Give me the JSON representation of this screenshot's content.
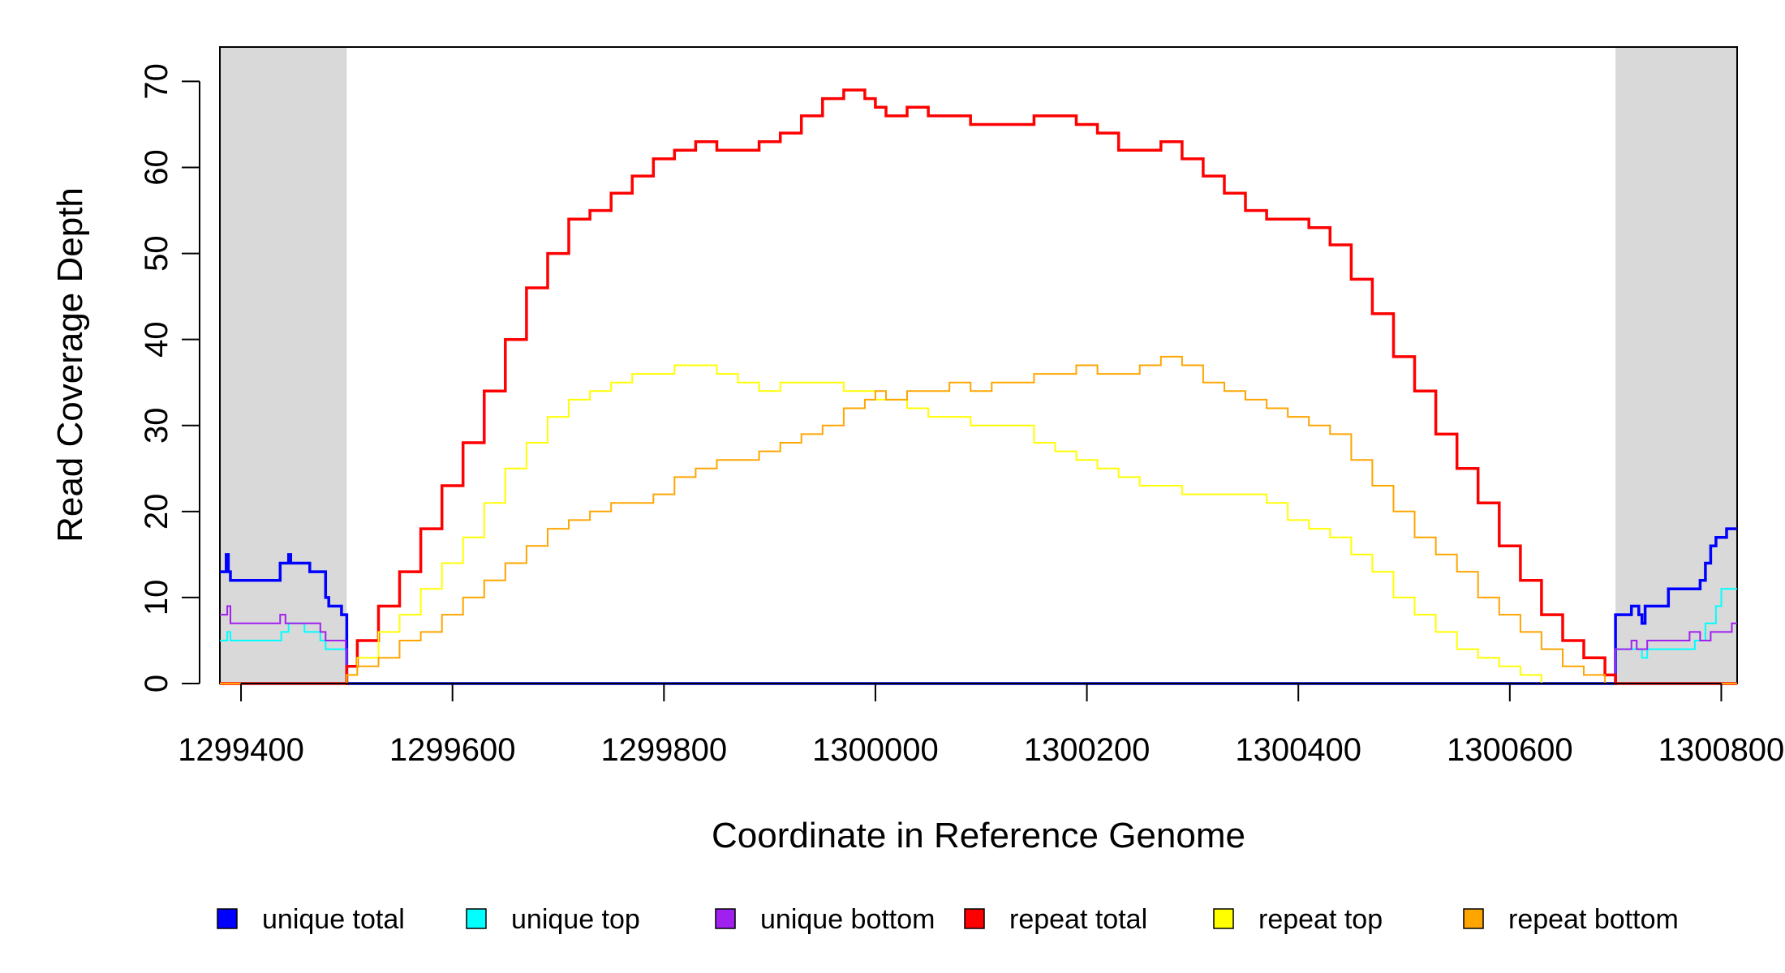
{
  "chart_data": {
    "type": "line",
    "title": "",
    "xlabel": "Coordinate in Reference Genome",
    "ylabel": "Read Coverage Depth",
    "xlim": [
      1299380,
      1300815
    ],
    "ylim": [
      0,
      74
    ],
    "x_ticks": [
      1299400,
      1299600,
      1299800,
      1300000,
      1300200,
      1300400,
      1300600,
      1300800
    ],
    "x_tick_labels": [
      "1299400",
      "1299600",
      "1299800",
      "1300000",
      "1300200",
      "1300400",
      "1300600",
      "1300800"
    ],
    "y_ticks": [
      0,
      10,
      20,
      30,
      40,
      50,
      60,
      70
    ],
    "y_tick_labels": [
      "0",
      "10",
      "20",
      "30",
      "40",
      "50",
      "60",
      "70"
    ],
    "shaded_regions": [
      [
        1299380,
        1299500
      ],
      [
        1300700,
        1300815
      ]
    ],
    "grid": false,
    "legend_position": "bottom",
    "series": [
      {
        "name": "unique total",
        "color": "#0000ff",
        "x": [
          1299380,
          1299386,
          1299388,
          1299390,
          1299410,
          1299415,
          1299425,
          1299437,
          1299445,
          1299447,
          1299453,
          1299465,
          1299480,
          1299483,
          1299490,
          1299495,
          1299499,
          1299500,
          1300700,
          1300705,
          1300715,
          1300722,
          1300725,
          1300728,
          1300732,
          1300750,
          1300760,
          1300780,
          1300785,
          1300790,
          1300795,
          1300800,
          1300805,
          1300815
        ],
        "values": [
          13,
          15,
          13,
          12,
          12,
          12,
          12,
          14,
          15,
          14,
          14,
          13,
          10,
          9,
          9,
          8,
          8,
          0,
          8,
          8,
          9,
          8,
          7,
          9,
          9,
          11,
          11,
          12,
          14,
          16,
          17,
          17,
          18,
          18
        ]
      },
      {
        "name": "unique top",
        "color": "#00ffff",
        "x": [
          1299380,
          1299387,
          1299390,
          1299420,
          1299438,
          1299445,
          1299460,
          1299475,
          1299480,
          1299490,
          1299499,
          1299500,
          1300700,
          1300720,
          1300725,
          1300730,
          1300760,
          1300775,
          1300785,
          1300795,
          1300800,
          1300815
        ],
        "values": [
          5,
          6,
          5,
          5,
          6,
          7,
          6,
          5,
          4,
          4,
          4,
          0,
          4,
          4,
          3,
          4,
          4,
          5,
          7,
          9,
          11,
          11
        ]
      },
      {
        "name": "unique bottom",
        "color": "#a020f0",
        "x": [
          1299380,
          1299387,
          1299390,
          1299420,
          1299437,
          1299442,
          1299460,
          1299475,
          1299480,
          1299485,
          1299499,
          1299500,
          1300700,
          1300715,
          1300720,
          1300725,
          1300730,
          1300740,
          1300750,
          1300770,
          1300780,
          1300790,
          1300805,
          1300810,
          1300815
        ],
        "values": [
          8,
          9,
          7,
          7,
          8,
          7,
          7,
          6,
          5,
          5,
          4,
          0,
          4,
          5,
          4,
          4,
          5,
          5,
          5,
          6,
          5,
          6,
          6,
          7,
          7
        ]
      },
      {
        "name": "repeat total",
        "color": "#ff0000",
        "x": [
          1299380,
          1299495,
          1299500,
          1299510,
          1299530,
          1299550,
          1299570,
          1299590,
          1299610,
          1299630,
          1299650,
          1299670,
          1299690,
          1299710,
          1299730,
          1299750,
          1299770,
          1299790,
          1299810,
          1299830,
          1299850,
          1299870,
          1299890,
          1299910,
          1299930,
          1299950,
          1299970,
          1299990,
          1300000,
          1300010,
          1300030,
          1300050,
          1300070,
          1300090,
          1300110,
          1300130,
          1300150,
          1300170,
          1300190,
          1300210,
          1300230,
          1300250,
          1300270,
          1300290,
          1300310,
          1300330,
          1300350,
          1300370,
          1300390,
          1300410,
          1300430,
          1300450,
          1300470,
          1300490,
          1300510,
          1300530,
          1300550,
          1300570,
          1300590,
          1300610,
          1300630,
          1300650,
          1300670,
          1300690,
          1300700,
          1300815
        ],
        "values": [
          0,
          0,
          2,
          5,
          9,
          13,
          18,
          23,
          28,
          34,
          40,
          46,
          50,
          54,
          55,
          57,
          59,
          61,
          62,
          63,
          62,
          62,
          63,
          64,
          66,
          68,
          69,
          68,
          67,
          66,
          67,
          66,
          66,
          65,
          65,
          65,
          66,
          66,
          65,
          64,
          62,
          62,
          63,
          61,
          59,
          57,
          55,
          54,
          54,
          53,
          51,
          47,
          43,
          38,
          34,
          29,
          25,
          21,
          16,
          12,
          8,
          5,
          3,
          1,
          0,
          0
        ]
      },
      {
        "name": "repeat top",
        "color": "#ffff00",
        "x": [
          1299380,
          1299495,
          1299500,
          1299510,
          1299530,
          1299550,
          1299570,
          1299590,
          1299610,
          1299630,
          1299650,
          1299670,
          1299690,
          1299710,
          1299730,
          1299750,
          1299770,
          1299790,
          1299810,
          1299830,
          1299850,
          1299870,
          1299890,
          1299910,
          1299930,
          1299950,
          1299970,
          1299990,
          1300000,
          1300010,
          1300030,
          1300050,
          1300070,
          1300090,
          1300110,
          1300130,
          1300150,
          1300170,
          1300190,
          1300210,
          1300230,
          1300250,
          1300270,
          1300290,
          1300310,
          1300330,
          1300350,
          1300370,
          1300390,
          1300410,
          1300430,
          1300450,
          1300470,
          1300490,
          1300510,
          1300530,
          1300550,
          1300570,
          1300590,
          1300610,
          1300630,
          1300650,
          1300670,
          1300690,
          1300700,
          1300815
        ],
        "values": [
          0,
          0,
          1,
          3,
          6,
          8,
          11,
          14,
          17,
          21,
          25,
          28,
          31,
          33,
          34,
          35,
          36,
          36,
          37,
          37,
          36,
          35,
          34,
          35,
          35,
          35,
          34,
          34,
          33,
          33,
          32,
          31,
          31,
          30,
          30,
          30,
          28,
          27,
          26,
          25,
          24,
          23,
          23,
          22,
          22,
          22,
          22,
          21,
          19,
          18,
          17,
          15,
          13,
          10,
          8,
          6,
          4,
          3,
          2,
          1,
          0,
          0,
          0,
          0,
          0,
          0
        ]
      },
      {
        "name": "repeat bottom",
        "color": "#ffa500",
        "x": [
          1299380,
          1299495,
          1299500,
          1299510,
          1299530,
          1299550,
          1299570,
          1299590,
          1299610,
          1299630,
          1299650,
          1299670,
          1299690,
          1299710,
          1299730,
          1299750,
          1299770,
          1299790,
          1299810,
          1299830,
          1299850,
          1299870,
          1299890,
          1299910,
          1299930,
          1299950,
          1299970,
          1299990,
          1300000,
          1300010,
          1300030,
          1300050,
          1300070,
          1300090,
          1300110,
          1300130,
          1300150,
          1300170,
          1300190,
          1300210,
          1300230,
          1300250,
          1300270,
          1300290,
          1300310,
          1300330,
          1300350,
          1300370,
          1300390,
          1300410,
          1300430,
          1300450,
          1300470,
          1300490,
          1300510,
          1300530,
          1300550,
          1300570,
          1300590,
          1300610,
          1300630,
          1300650,
          1300670,
          1300690,
          1300700,
          1300815
        ],
        "values": [
          0,
          0,
          1,
          2,
          3,
          5,
          6,
          8,
          10,
          12,
          14,
          16,
          18,
          19,
          20,
          21,
          21,
          22,
          24,
          25,
          26,
          26,
          27,
          28,
          29,
          30,
          32,
          33,
          34,
          33,
          34,
          34,
          35,
          34,
          35,
          35,
          36,
          36,
          37,
          36,
          36,
          37,
          38,
          37,
          35,
          34,
          33,
          32,
          31,
          30,
          29,
          26,
          23,
          20,
          17,
          15,
          13,
          10,
          8,
          6,
          4,
          2,
          1,
          0,
          0,
          0
        ]
      }
    ]
  }
}
